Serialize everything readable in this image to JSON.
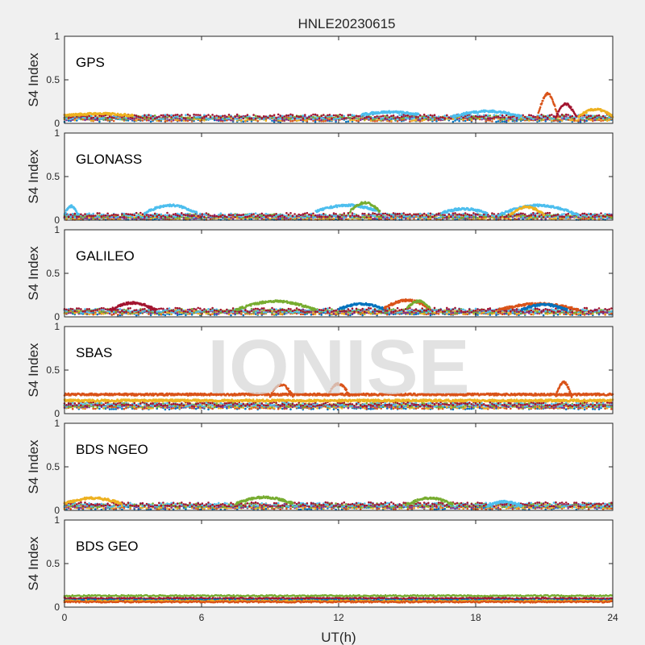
{
  "figure": {
    "title": "HNLE20230615",
    "watermark": "IONISE",
    "xlabel": "UT(h)",
    "ylabel": "S4 Index"
  },
  "chart_data": [
    {
      "type": "scatter",
      "panel": "GPS",
      "xlabel": "UT(h)",
      "ylabel": "S4 Index",
      "xlim": [
        0,
        24
      ],
      "ylim": [
        0,
        1
      ],
      "xticks": [
        0,
        6,
        12,
        18,
        24
      ],
      "yticks": [
        0,
        0.5,
        1
      ],
      "show_x_tick_labels": false,
      "baseline": 0.06,
      "features": [
        {
          "x": [
            0,
            3
          ],
          "y": [
            0.09,
            0.11
          ],
          "color": "#EDB120"
        },
        {
          "x": [
            13,
            15.5
          ],
          "y": [
            0.1,
            0.13
          ],
          "color": "#4DBEEE"
        },
        {
          "x": [
            17,
            20
          ],
          "y": [
            0.08,
            0.14
          ],
          "color": "#4DBEEE"
        },
        {
          "x": [
            20.7,
            21.6
          ],
          "y": [
            0.07,
            0.34
          ],
          "color": "#D95319"
        },
        {
          "x": [
            21.5,
            22.4
          ],
          "y": [
            0.07,
            0.22
          ],
          "color": "#A2142F"
        },
        {
          "x": [
            22.5,
            24
          ],
          "y": [
            0.08,
            0.16
          ],
          "color": "#EDB120"
        }
      ]
    },
    {
      "type": "scatter",
      "panel": "GLONASS",
      "xlabel": "UT(h)",
      "ylabel": "S4 Index",
      "xlim": [
        0,
        24
      ],
      "ylim": [
        0,
        1
      ],
      "xticks": [
        0,
        6,
        12,
        18,
        24
      ],
      "yticks": [
        0,
        0.5,
        1
      ],
      "show_x_tick_labels": false,
      "baseline": 0.04,
      "features": [
        {
          "x": [
            0,
            0.6
          ],
          "y": [
            0.06,
            0.16
          ],
          "color": "#4DBEEE"
        },
        {
          "x": [
            3.5,
            5.8
          ],
          "y": [
            0.08,
            0.17
          ],
          "color": "#4DBEEE"
        },
        {
          "x": [
            11,
            13.8
          ],
          "y": [
            0.1,
            0.17
          ],
          "color": "#4DBEEE"
        },
        {
          "x": [
            12.5,
            13.8
          ],
          "y": [
            0.1,
            0.2
          ],
          "color": "#77AC30"
        },
        {
          "x": [
            16.5,
            18.5
          ],
          "y": [
            0.08,
            0.13
          ],
          "color": "#4DBEEE"
        },
        {
          "x": [
            19,
            22.5
          ],
          "y": [
            0.06,
            0.17
          ],
          "color": "#4DBEEE"
        },
        {
          "x": [
            19.5,
            21
          ],
          "y": [
            0.06,
            0.15
          ],
          "color": "#EDB120"
        }
      ]
    },
    {
      "type": "scatter",
      "panel": "GALILEO",
      "xlabel": "UT(h)",
      "ylabel": "S4 Index",
      "xlim": [
        0,
        24
      ],
      "ylim": [
        0,
        1
      ],
      "xticks": [
        0,
        6,
        12,
        18,
        24
      ],
      "yticks": [
        0,
        0.5,
        1
      ],
      "show_x_tick_labels": false,
      "baseline": 0.06,
      "features": [
        {
          "x": [
            2,
            4
          ],
          "y": [
            0.08,
            0.16
          ],
          "color": "#A2142F"
        },
        {
          "x": [
            7.5,
            11
          ],
          "y": [
            0.08,
            0.18
          ],
          "color": "#77AC30"
        },
        {
          "x": [
            12,
            14
          ],
          "y": [
            0.09,
            0.15
          ],
          "color": "#0072BD"
        },
        {
          "x": [
            14,
            16
          ],
          "y": [
            0.1,
            0.19
          ],
          "color": "#D95319"
        },
        {
          "x": [
            15,
            16
          ],
          "y": [
            0.1,
            0.18
          ],
          "color": "#77AC30"
        },
        {
          "x": [
            19,
            22.5
          ],
          "y": [
            0.08,
            0.15
          ],
          "color": "#D95319"
        },
        {
          "x": [
            20,
            22
          ],
          "y": [
            0.08,
            0.14
          ],
          "color": "#0072BD"
        }
      ]
    },
    {
      "type": "scatter",
      "panel": "SBAS",
      "xlabel": "UT(h)",
      "ylabel": "S4 Index",
      "xlim": [
        0,
        24
      ],
      "ylim": [
        0,
        1
      ],
      "xticks": [
        0,
        6,
        12,
        18,
        24
      ],
      "yticks": [
        0,
        0.5,
        1
      ],
      "show_x_tick_labels": false,
      "baseline": 0.09,
      "features": [
        {
          "x": [
            0,
            24
          ],
          "y": [
            0.22,
            0.22
          ],
          "color": "#D95319"
        },
        {
          "x": [
            0,
            24
          ],
          "y": [
            0.15,
            0.15
          ],
          "color": "#EDB120"
        },
        {
          "x": [
            9,
            10
          ],
          "y": [
            0.2,
            0.33
          ],
          "color": "#D95319"
        },
        {
          "x": [
            11.5,
            12.5
          ],
          "y": [
            0.2,
            0.34
          ],
          "color": "#D95319"
        },
        {
          "x": [
            21.5,
            22.2
          ],
          "y": [
            0.2,
            0.36
          ],
          "color": "#D95319"
        }
      ]
    },
    {
      "type": "scatter",
      "panel": "BDS NGEO",
      "xlabel": "UT(h)",
      "ylabel": "S4 Index",
      "xlim": [
        0,
        24
      ],
      "ylim": [
        0,
        1
      ],
      "xticks": [
        0,
        6,
        12,
        18,
        24
      ],
      "yticks": [
        0,
        0.5,
        1
      ],
      "show_x_tick_labels": false,
      "baseline": 0.05,
      "features": [
        {
          "x": [
            0,
            2.5
          ],
          "y": [
            0.08,
            0.14
          ],
          "color": "#EDB120"
        },
        {
          "x": [
            7.5,
            10
          ],
          "y": [
            0.08,
            0.15
          ],
          "color": "#77AC30"
        },
        {
          "x": [
            15,
            17
          ],
          "y": [
            0.07,
            0.14
          ],
          "color": "#77AC30"
        },
        {
          "x": [
            18.5,
            20
          ],
          "y": [
            0.05,
            0.1
          ],
          "color": "#4DBEEE"
        }
      ]
    },
    {
      "type": "scatter",
      "panel": "BDS GEO",
      "xlabel": "UT(h)",
      "ylabel": "S4 Index",
      "xlim": [
        0,
        24
      ],
      "ylim": [
        0,
        1
      ],
      "xticks": [
        0,
        6,
        12,
        18,
        24
      ],
      "yticks": [
        0,
        0.5,
        1
      ],
      "show_x_tick_labels": true,
      "bands": [
        {
          "y": 0.13,
          "color": "#77AC30"
        },
        {
          "y": 0.1,
          "color": "#A2142F"
        },
        {
          "y": 0.08,
          "color": "#0072BD"
        },
        {
          "y": 0.07,
          "color": "#EDB120"
        },
        {
          "y": 0.06,
          "color": "#D95319"
        }
      ]
    }
  ],
  "series_colors": [
    "#0072BD",
    "#D95319",
    "#EDB120",
    "#7E2F8E",
    "#77AC30",
    "#4DBEEE",
    "#A2142F"
  ]
}
